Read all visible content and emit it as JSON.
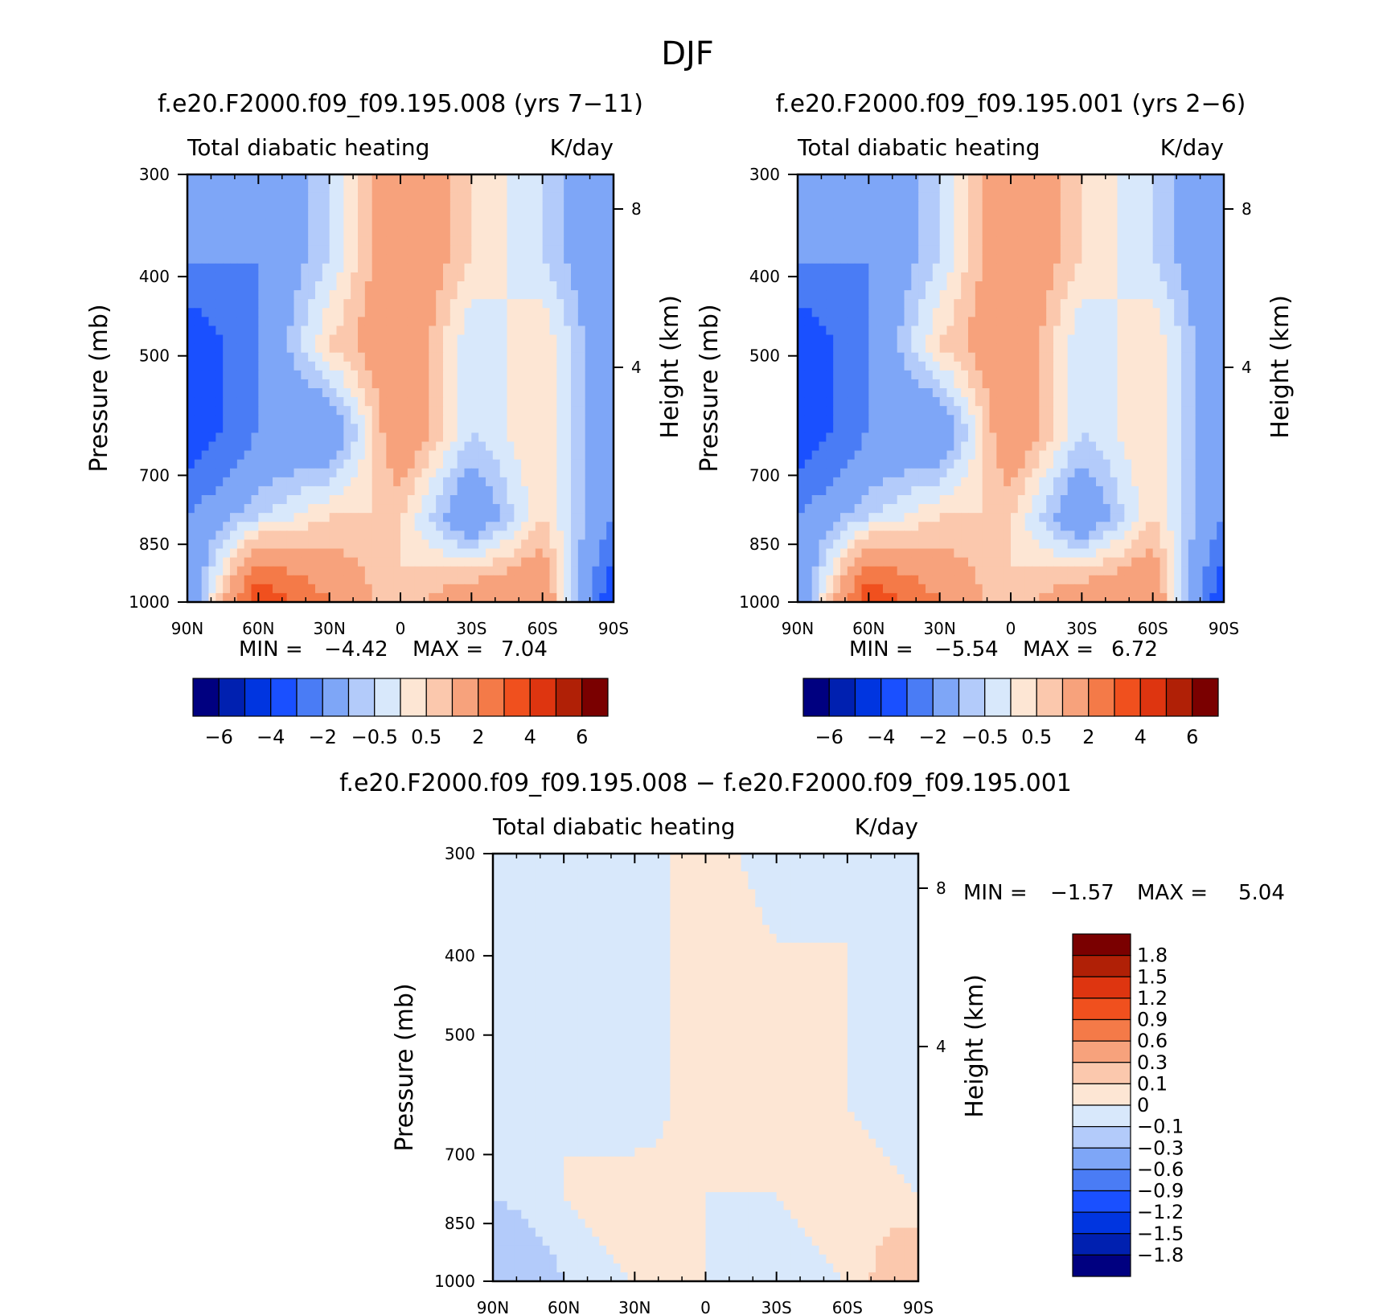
{
  "figure": {
    "title": "DJF"
  },
  "panels": [
    {
      "title": "f.e20.F2000.f09_f09.195.008 (yrs 7−11)",
      "subtitle_left": "Total diabatic heating",
      "subtitle_right": "K/day",
      "min_label": "MIN =",
      "min_value": "−4.42",
      "max_label": "MAX =",
      "max_value": "7.04"
    },
    {
      "title": "f.e20.F2000.f09_f09.195.001 (yrs 2−6)",
      "subtitle_left": "Total diabatic heating",
      "subtitle_right": "K/day",
      "min_label": "MIN =",
      "min_value": "−5.54",
      "max_label": "MAX =",
      "max_value": "6.72"
    },
    {
      "title": "f.e20.F2000.f09_f09.195.008 − f.e20.F2000.f09_f09.195.001",
      "subtitle_left": "Total diabatic heating",
      "subtitle_right": "K/day",
      "min_label": "MIN =",
      "min_value": "−1.57",
      "max_label": "MAX =",
      "max_value": "5.04"
    }
  ],
  "axes": {
    "x_ticks": [
      "90N",
      "60N",
      "30N",
      "0",
      "30S",
      "60S",
      "90S"
    ],
    "y_ticks": [
      "300",
      "400",
      "500",
      "700",
      "850",
      "1000"
    ],
    "y_label": "Pressure (mb)",
    "y2_ticks": [
      "8",
      "4"
    ],
    "y2_label": "Height (km)"
  },
  "colorbar_main": {
    "colors": [
      "#000080",
      "#0020b0",
      "#0035e0",
      "#1a50ff",
      "#4a7cf5",
      "#7ea6f7",
      "#b3cbfa",
      "#d8e8fb",
      "#fde6d4",
      "#fbc8ad",
      "#f7a27c",
      "#f47a48",
      "#f0501e",
      "#de3510",
      "#b02006",
      "#7a0000"
    ],
    "labels": [
      "−6",
      "−4",
      "−2",
      "−0.5",
      "0.5",
      "2",
      "4",
      "6"
    ]
  },
  "colorbar_diff": {
    "colors": [
      "#7a0000",
      "#b02006",
      "#de3510",
      "#f0501e",
      "#f47a48",
      "#f7a27c",
      "#fbc8ad",
      "#fde6d4",
      "#d8e8fb",
      "#b3cbfa",
      "#7ea6f7",
      "#4a7cf5",
      "#1a50ff",
      "#0035e0",
      "#0020b0",
      "#000080"
    ],
    "labels": [
      "1.8",
      "1.5",
      "1.2",
      "0.9",
      "0.6",
      "0.3",
      "0.1",
      "0",
      "−0.1",
      "−0.3",
      "−0.6",
      "−0.9",
      "−1.2",
      "−1.5",
      "−1.8"
    ]
  },
  "chart_data": [
    {
      "type": "heatmap",
      "title": "f.e20.F2000.f09_f09.195.008 (yrs 7−11)",
      "xlabel": "",
      "ylabel": "Pressure (mb)",
      "y2label": "Height (km)",
      "x": [
        "90N",
        "60N",
        "30N",
        "0",
        "30S",
        "60S",
        "90S"
      ],
      "y": [
        300,
        400,
        500,
        700,
        850,
        1000
      ],
      "units": "K/day",
      "values": [
        [
          -2,
          -2,
          -0.5,
          2,
          0.5,
          -0.5,
          -2
        ],
        [
          -2,
          -2,
          -0.5,
          2,
          0.5,
          -0.5,
          -2
        ],
        [
          -4,
          -2,
          0.5,
          2,
          -0.5,
          0.5,
          -2
        ],
        [
          -4,
          -2,
          -2,
          2,
          -0.5,
          0.5,
          -2
        ],
        [
          -2,
          -0.5,
          0.5,
          0.5,
          -2,
          0.5,
          -2
        ],
        [
          -2,
          4,
          2,
          0.5,
          2,
          2,
          -4
        ]
      ],
      "min": -4.42,
      "max": 7.04
    },
    {
      "type": "heatmap",
      "title": "f.e20.F2000.f09_f09.195.001 (yrs 2−6)",
      "xlabel": "",
      "ylabel": "Pressure (mb)",
      "y2label": "Height (km)",
      "x": [
        "90N",
        "60N",
        "30N",
        "0",
        "30S",
        "60S",
        "90S"
      ],
      "y": [
        300,
        400,
        500,
        700,
        850,
        1000
      ],
      "units": "K/day",
      "values": [
        [
          -2,
          -2,
          -0.5,
          2,
          0.5,
          -0.5,
          -2
        ],
        [
          -2,
          -2,
          -0.5,
          2,
          0.5,
          -0.5,
          -2
        ],
        [
          -4,
          -2,
          0.5,
          2,
          -0.5,
          0.5,
          -2
        ],
        [
          -4,
          -2,
          -2,
          2,
          -0.5,
          0.5,
          -2
        ],
        [
          -2,
          -0.5,
          0.5,
          0.5,
          -2,
          0.5,
          -2
        ],
        [
          -2,
          4,
          2,
          0.5,
          2,
          2,
          -4
        ]
      ],
      "min": -5.54,
      "max": 6.72
    },
    {
      "type": "heatmap",
      "title": "f.e20.F2000.f09_f09.195.008 − f.e20.F2000.f09_f09.195.001",
      "xlabel": "",
      "ylabel": "Pressure (mb)",
      "y2label": "Height (km)",
      "x": [
        "90N",
        "60N",
        "30N",
        "0",
        "30S",
        "60S",
        "90S"
      ],
      "y": [
        300,
        400,
        500,
        700,
        850,
        1000
      ],
      "units": "K/day",
      "values": [
        [
          0,
          -0.1,
          -0.1,
          0.1,
          -0.1,
          0,
          -0.1
        ],
        [
          0,
          -0.1,
          -0.1,
          0.1,
          0,
          0,
          -0.1
        ],
        [
          0,
          -0.1,
          -0.1,
          0.1,
          0,
          0,
          -0.1
        ],
        [
          -0.1,
          0,
          -0.1,
          0.1,
          0,
          0,
          -0.1
        ],
        [
          -0.1,
          0,
          0.1,
          0,
          0,
          0.1,
          0
        ],
        [
          -0.3,
          -0.1,
          0,
          0,
          -0.1,
          0,
          0.3
        ]
      ],
      "min": -1.57,
      "max": 5.04
    }
  ]
}
